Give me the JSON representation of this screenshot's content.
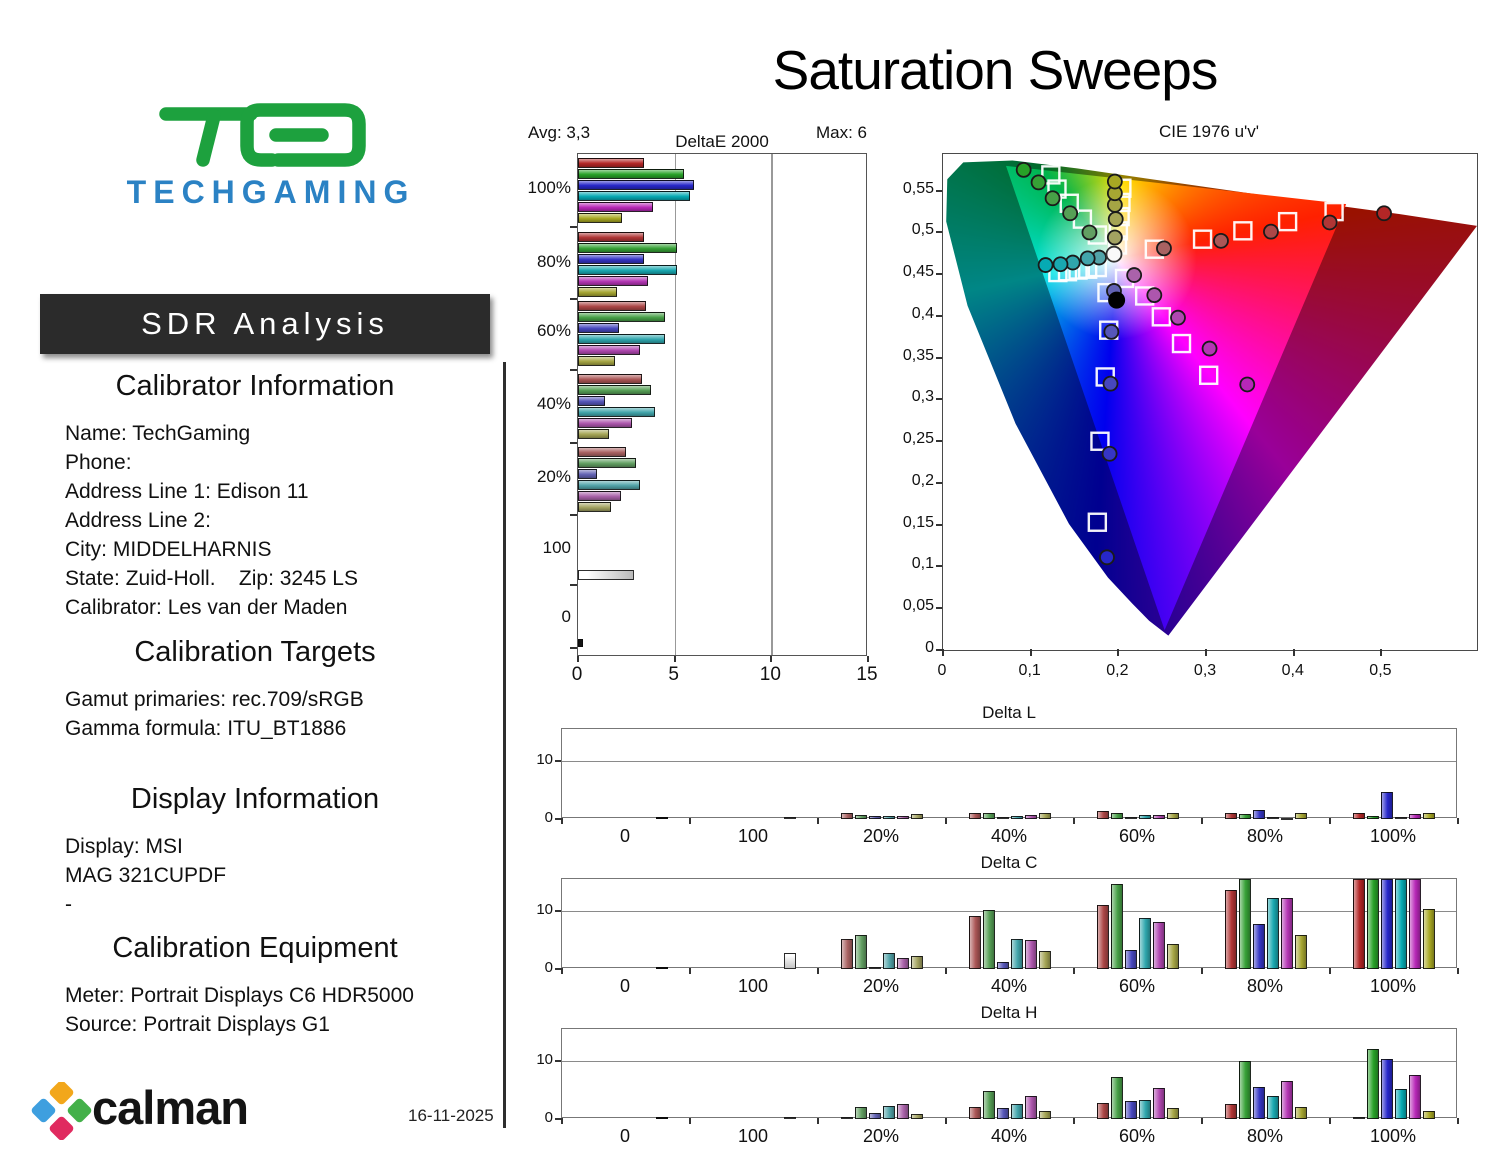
{
  "page": {
    "title": "Saturation Sweeps",
    "date": "16-11-2025"
  },
  "branding": {
    "logo_text": "TECHGAMING",
    "logo_mark_color": "#1da13e",
    "logo_text_color": "#2b82c4",
    "banner": "SDR Analysis",
    "calman": "calman",
    "calman_diamond_colors": {
      "top": "#f2a71b",
      "left": "#3e9fdf",
      "right": "#43b049",
      "bottom": "#e02a5f"
    }
  },
  "left_panel": {
    "sections": [
      {
        "heading": "Calibrator Information",
        "lines": [
          "Name: TechGaming",
          "Phone:",
          "Address Line 1: Edison 11",
          "Address Line 2:",
          "City: MIDDELHARNIS",
          "State: Zuid-Holl.    Zip: 3245 LS",
          "Calibrator: Les van der Maden"
        ]
      },
      {
        "heading": "Calibration Targets",
        "lines": [
          "Gamut primaries: rec.709/sRGB",
          "Gamma formula: ITU_BT1886"
        ]
      },
      {
        "heading": "Display Information",
        "lines": [
          "Display: MSI",
          "MAG 321CUPDF",
          "-"
        ]
      },
      {
        "heading": "Calibration Equipment",
        "lines": [
          "Meter: Portrait Displays C6 HDR5000",
          "Source: Portrait Displays G1"
        ]
      }
    ]
  },
  "series_colors": {
    "red": "#b42121",
    "green": "#22a122",
    "blue": "#2222cc",
    "cyan": "#00aab4",
    "magenta": "#b822b8",
    "yellow": "#a8a81e"
  },
  "sat_fade": {
    "100%": 0.04,
    "80%": 0.16,
    "60%": 0.3,
    "40%": 0.42,
    "20%": 0.52
  },
  "chart_data": [
    {
      "id": "deltae2000",
      "type": "bar",
      "orientation": "horizontal",
      "title": "DeltaE 2000",
      "avg_label": "Avg: 3,3",
      "max_label": "Max: 6",
      "xlim": [
        0,
        15
      ],
      "xticks": [
        "0",
        "5",
        "10",
        "15"
      ],
      "gridlines_at": [
        5,
        10
      ],
      "series_order": [
        "red",
        "green",
        "blue",
        "cyan",
        "magenta",
        "yellow"
      ],
      "groups": [
        {
          "label": "100%",
          "values": [
            3.4,
            5.5,
            6.0,
            5.8,
            3.9,
            2.3
          ]
        },
        {
          "label": "80%",
          "values": [
            3.4,
            5.1,
            3.4,
            5.1,
            3.6,
            2.0
          ]
        },
        {
          "label": "60%",
          "values": [
            3.5,
            4.5,
            2.1,
            4.5,
            3.2,
            1.9
          ]
        },
        {
          "label": "40%",
          "values": [
            3.3,
            3.8,
            1.4,
            4.0,
            2.8,
            1.6
          ]
        },
        {
          "label": "20%",
          "values": [
            2.5,
            3.0,
            1.0,
            3.2,
            2.2,
            1.7
          ]
        },
        {
          "label": "100",
          "single": "white",
          "value": 2.9
        },
        {
          "label": "0",
          "single": "black",
          "value": 0.25
        }
      ]
    },
    {
      "id": "cie",
      "type": "scatter",
      "title": "CIE 1976 u'v'",
      "xlim": [
        0,
        0.609
      ],
      "ylim": [
        0,
        0.594
      ],
      "xticks": [
        "0",
        "0,1",
        "0,2",
        "0,3",
        "0,4",
        "0,5"
      ],
      "yticks": [
        "0",
        "0,05",
        "0,1",
        "0,15",
        "0,2",
        "0,25",
        "0,3",
        "0,35",
        "0,4",
        "0,45",
        "0,5",
        "0,55"
      ],
      "legend_note": "squares = targets, circles = measured, levels 20%..100%",
      "sweeps": [
        {
          "name": "red",
          "targets": [
            [
              0.241,
              0.48
            ],
            [
              0.296,
              0.492
            ],
            [
              0.342,
              0.502
            ],
            [
              0.393,
              0.513
            ],
            [
              0.446,
              0.525
            ]
          ],
          "measured": [
            [
              0.252,
              0.481
            ],
            [
              0.317,
              0.49
            ],
            [
              0.374,
              0.501
            ],
            [
              0.441,
              0.512
            ],
            [
              0.503,
              0.523
            ]
          ]
        },
        {
          "name": "green",
          "targets": [
            [
              0.176,
              0.497
            ],
            [
              0.159,
              0.516
            ],
            [
              0.144,
              0.535
            ],
            [
              0.13,
              0.552
            ],
            [
              0.123,
              0.569
            ]
          ],
          "measured": [
            [
              0.167,
              0.5
            ],
            [
              0.145,
              0.523
            ],
            [
              0.125,
              0.541
            ],
            [
              0.109,
              0.56
            ],
            [
              0.092,
              0.575
            ]
          ]
        },
        {
          "name": "blue",
          "targets": [
            [
              0.187,
              0.428
            ],
            [
              0.189,
              0.383
            ],
            [
              0.185,
              0.327
            ],
            [
              0.179,
              0.25
            ],
            [
              0.176,
              0.153
            ]
          ],
          "measured": [
            [
              0.195,
              0.43
            ],
            [
              0.192,
              0.381
            ],
            [
              0.191,
              0.319
            ],
            [
              0.19,
              0.235
            ],
            [
              0.187,
              0.111
            ]
          ]
        },
        {
          "name": "cyan",
          "targets": [
            [
              0.176,
              0.458
            ],
            [
              0.165,
              0.456
            ],
            [
              0.154,
              0.455
            ],
            [
              0.142,
              0.453
            ],
            [
              0.131,
              0.452
            ]
          ],
          "measured": [
            [
              0.178,
              0.47
            ],
            [
              0.165,
              0.469
            ],
            [
              0.148,
              0.464
            ],
            [
              0.134,
              0.462
            ],
            [
              0.117,
              0.461
            ]
          ]
        },
        {
          "name": "magenta",
          "targets": [
            [
              0.207,
              0.445
            ],
            [
              0.23,
              0.424
            ],
            [
              0.249,
              0.399
            ],
            [
              0.272,
              0.367
            ],
            [
              0.303,
              0.329
            ]
          ],
          "measured": [
            [
              0.218,
              0.449
            ],
            [
              0.241,
              0.425
            ],
            [
              0.268,
              0.398
            ],
            [
              0.304,
              0.361
            ],
            [
              0.347,
              0.318
            ]
          ]
        },
        {
          "name": "yellow",
          "targets": [
            [
              0.199,
              0.485
            ],
            [
              0.2,
              0.502
            ],
            [
              0.202,
              0.519
            ],
            [
              0.203,
              0.536
            ],
            [
              0.204,
              0.553
            ]
          ],
          "measured": [
            [
              0.196,
              0.494
            ],
            [
              0.197,
              0.516
            ],
            [
              0.196,
              0.533
            ],
            [
              0.196,
              0.547
            ],
            [
              0.196,
              0.561
            ]
          ]
        }
      ],
      "white_measured": [
        0.195,
        0.474
      ],
      "black_measured": [
        0.198,
        0.419
      ]
    },
    {
      "id": "deltaL",
      "type": "bar",
      "title": "Delta L",
      "ylim": [
        0,
        15.4
      ],
      "yticks": [
        "0",
        "10"
      ],
      "grid_value": 10,
      "series_order": [
        "red",
        "green",
        "blue",
        "cyan",
        "magenta",
        "yellow"
      ],
      "groups": [
        {
          "label": "0",
          "single": "black",
          "value": 0.05
        },
        {
          "label": "100",
          "single": "white",
          "value": 0.1
        },
        {
          "label": "20%",
          "values": [
            1.1,
            0.6,
            0.5,
            0.5,
            0.5,
            0.8
          ]
        },
        {
          "label": "40%",
          "values": [
            1.1,
            1.0,
            0.3,
            0.5,
            0.6,
            1.0
          ]
        },
        {
          "label": "60%",
          "values": [
            1.3,
            1.0,
            0.3,
            0.6,
            0.6,
            1.0
          ]
        },
        {
          "label": "80%",
          "values": [
            1.0,
            0.8,
            1.5,
            0.3,
            0.2,
            1.0
          ]
        },
        {
          "label": "100%",
          "values": [
            1.0,
            0.5,
            4.7,
            0.3,
            0.9,
            1.0
          ]
        }
      ]
    },
    {
      "id": "deltaC",
      "type": "bar",
      "title": "Delta C",
      "ylim": [
        0,
        15.4
      ],
      "yticks": [
        "0",
        "10"
      ],
      "grid_value": 10,
      "series_order": [
        "red",
        "green",
        "blue",
        "cyan",
        "magenta",
        "yellow"
      ],
      "groups": [
        {
          "label": "0",
          "single": "black",
          "value": 0.3
        },
        {
          "label": "100",
          "single": "white",
          "value": 2.7
        },
        {
          "label": "20%",
          "values": [
            5.2,
            5.9,
            0.3,
            2.7,
            1.8,
            2.2
          ]
        },
        {
          "label": "40%",
          "values": [
            9.0,
            10.1,
            1.2,
            5.2,
            4.9,
            3.0
          ]
        },
        {
          "label": "60%",
          "values": [
            11.0,
            14.5,
            3.2,
            8.7,
            8.1,
            4.3
          ]
        },
        {
          "label": "80%",
          "values": [
            13.5,
            15.8,
            7.7,
            12.2,
            12.2,
            5.9
          ]
        },
        {
          "label": "100%",
          "values": [
            15.8,
            15.8,
            15.8,
            15.8,
            15.8,
            10.3
          ]
        }
      ]
    },
    {
      "id": "deltaH",
      "type": "bar",
      "title": "Delta H",
      "ylim": [
        0,
        15.4
      ],
      "yticks": [
        "0",
        "10"
      ],
      "grid_value": 10,
      "series_order": [
        "red",
        "green",
        "blue",
        "cyan",
        "magenta",
        "yellow"
      ],
      "groups": [
        {
          "label": "0",
          "single": "black",
          "value": 0.05
        },
        {
          "label": "100",
          "single": "white",
          "value": 0.05
        },
        {
          "label": "20%",
          "values": [
            0.4,
            2.0,
            1.0,
            2.2,
            2.5,
            0.8
          ]
        },
        {
          "label": "40%",
          "values": [
            2.0,
            4.8,
            1.9,
            2.6,
            4.0,
            1.3
          ]
        },
        {
          "label": "60%",
          "values": [
            2.7,
            7.2,
            3.0,
            3.2,
            5.3,
            1.8
          ]
        },
        {
          "label": "80%",
          "values": [
            2.5,
            9.9,
            5.5,
            3.9,
            6.5,
            2.1
          ]
        },
        {
          "label": "100%",
          "values": [
            0.3,
            12.0,
            10.2,
            5.2,
            7.5,
            1.3
          ]
        }
      ]
    }
  ]
}
